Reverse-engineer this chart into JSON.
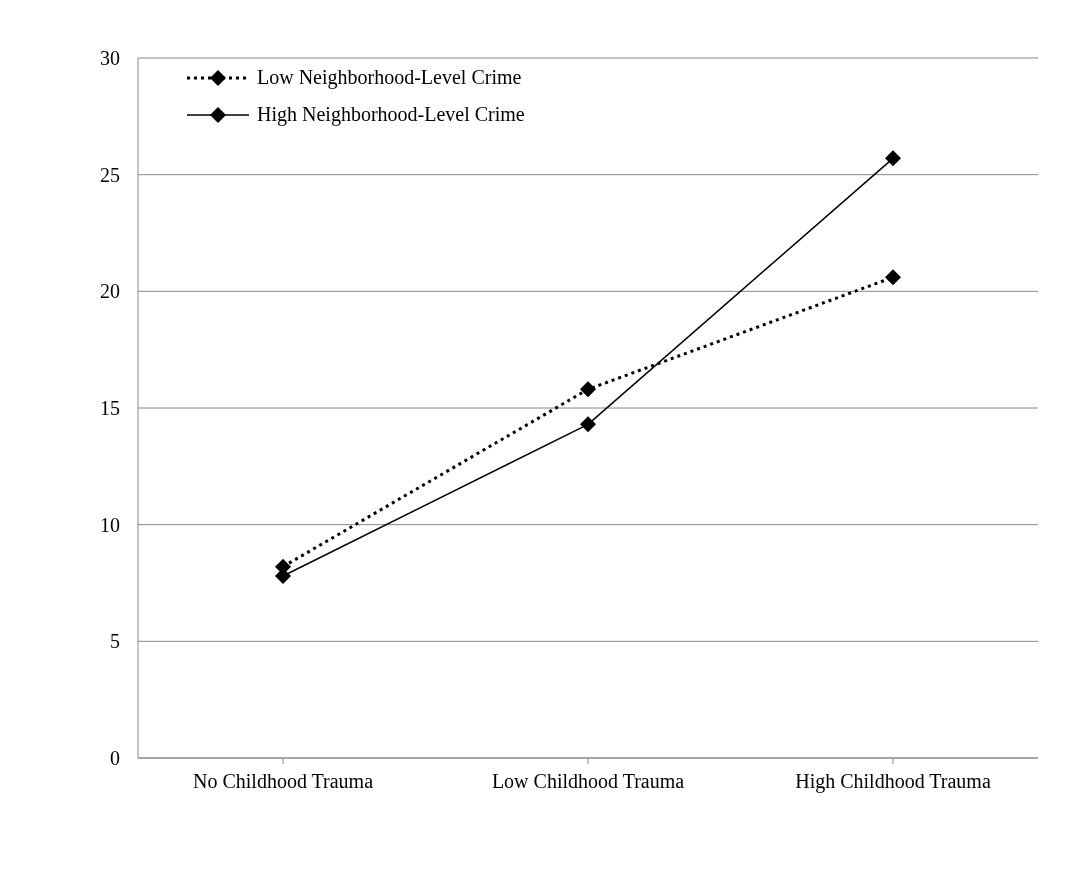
{
  "chart_data": {
    "type": "line",
    "categories": [
      "No Childhood Trauma",
      "Low Childhood Trauma",
      "High Childhood Trauma"
    ],
    "series": [
      {
        "name": "Low Neighborhood-Level Crime",
        "color": "#000000",
        "values": [
          8.2,
          15.8,
          20.6
        ],
        "line_style": "dotted"
      },
      {
        "name": "High Neighborhood-Level Crime",
        "color": "#000000",
        "values": [
          7.8,
          14.3,
          25.7
        ],
        "line_style": "solid"
      }
    ],
    "ylim": [
      0,
      30
    ],
    "yticks": [
      0,
      5,
      10,
      15,
      20,
      25,
      30
    ],
    "grid": "y",
    "legend": "top left",
    "marker": "diamond"
  }
}
